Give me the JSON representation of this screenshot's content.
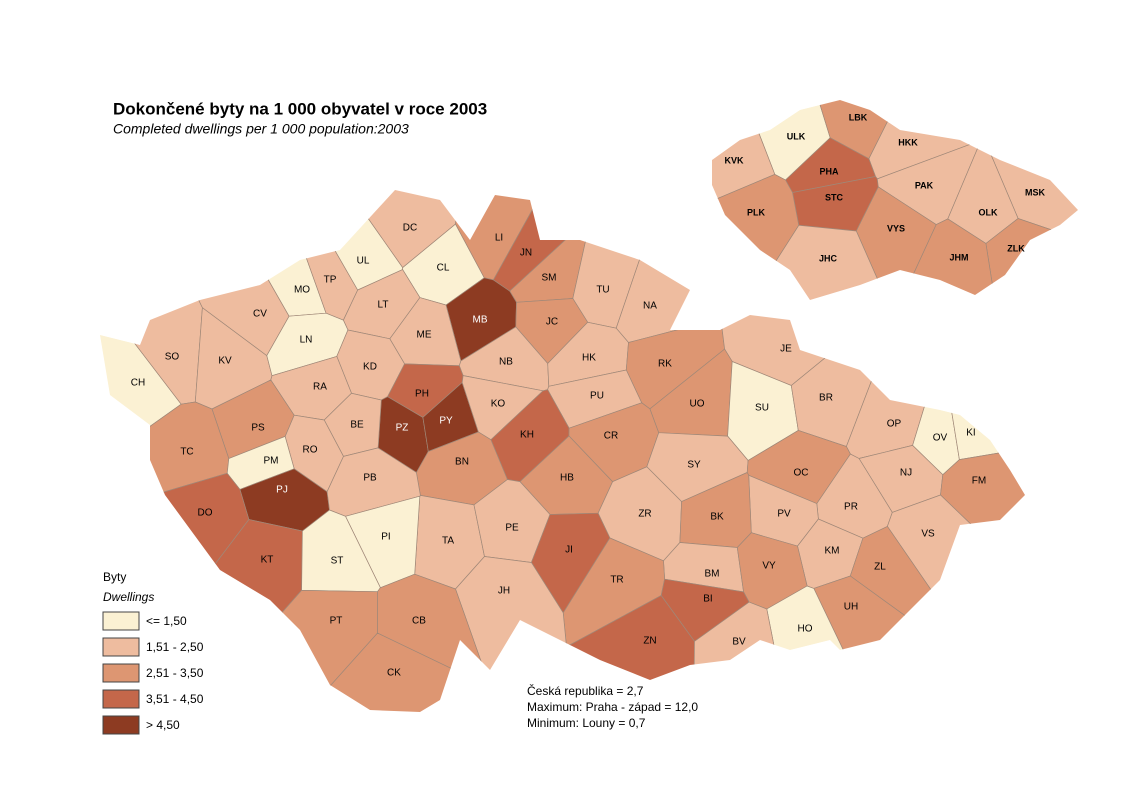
{
  "title": "Dokončené byty na 1 000 obyvatel v roce 2003",
  "subtitle": "Completed dwellings per 1 000 population:2003",
  "legend": {
    "title": "Byty",
    "subtitle": "Dwellings",
    "classes": [
      {
        "label": "<= 1,50",
        "color": "#fbf1d3"
      },
      {
        "label": "1,51 - 2,50",
        "color": "#eebc9f"
      },
      {
        "label": "2,51 - 3,50",
        "color": "#dd9672"
      },
      {
        "label": "3,51 - 4,50",
        "color": "#c4674a"
      },
      {
        "label": "> 4,50",
        "color": "#8d3b22"
      }
    ]
  },
  "districts": [
    {
      "label": "CH",
      "class": 0
    },
    {
      "label": "SO",
      "class": 1
    },
    {
      "label": "KV",
      "class": 1
    },
    {
      "label": "CV",
      "class": 1
    },
    {
      "label": "MO",
      "class": 0
    },
    {
      "label": "TP",
      "class": 1
    },
    {
      "label": "UL",
      "class": 0
    },
    {
      "label": "DC",
      "class": 1
    },
    {
      "label": "CL",
      "class": 0
    },
    {
      "label": "LI",
      "class": 2
    },
    {
      "label": "JN",
      "class": 3
    },
    {
      "label": "SM",
      "class": 2
    },
    {
      "label": "TU",
      "class": 1
    },
    {
      "label": "NA",
      "class": 1
    },
    {
      "label": "MB",
      "class": 4
    },
    {
      "label": "JC",
      "class": 2
    },
    {
      "label": "LT",
      "class": 1
    },
    {
      "label": "LN",
      "class": 0
    },
    {
      "label": "ME",
      "class": 1
    },
    {
      "label": "KD",
      "class": 1
    },
    {
      "label": "NB",
      "class": 1
    },
    {
      "label": "HK",
      "class": 1
    },
    {
      "label": "RK",
      "class": 2
    },
    {
      "label": "JE",
      "class": 1
    },
    {
      "label": "RA",
      "class": 1
    },
    {
      "label": "PH",
      "class": 3
    },
    {
      "label": "PZ",
      "class": 4
    },
    {
      "label": "PY",
      "class": 4
    },
    {
      "label": "KO",
      "class": 1
    },
    {
      "label": "PU",
      "class": 1
    },
    {
      "label": "UO",
      "class": 2
    },
    {
      "label": "SU",
      "class": 0
    },
    {
      "label": "BR",
      "class": 1
    },
    {
      "label": "OP",
      "class": 1
    },
    {
      "label": "OV",
      "class": 0
    },
    {
      "label": "KI",
      "class": 0
    },
    {
      "label": "BE",
      "class": 1
    },
    {
      "label": "RO",
      "class": 1
    },
    {
      "label": "PS",
      "class": 2
    },
    {
      "label": "TC",
      "class": 2
    },
    {
      "label": "PM",
      "class": 0
    },
    {
      "label": "PJ",
      "class": 4
    },
    {
      "label": "KH",
      "class": 3
    },
    {
      "label": "CR",
      "class": 2
    },
    {
      "label": "BN",
      "class": 2
    },
    {
      "label": "SY",
      "class": 1
    },
    {
      "label": "OC",
      "class": 2
    },
    {
      "label": "NJ",
      "class": 1
    },
    {
      "label": "FM",
      "class": 2
    },
    {
      "label": "PB",
      "class": 1
    },
    {
      "label": "HB",
      "class": 2
    },
    {
      "label": "DO",
      "class": 3
    },
    {
      "label": "PR",
      "class": 1
    },
    {
      "label": "PV",
      "class": 1
    },
    {
      "label": "ZR",
      "class": 1
    },
    {
      "label": "BK",
      "class": 2
    },
    {
      "label": "TA",
      "class": 1
    },
    {
      "label": "PE",
      "class": 1
    },
    {
      "label": "PI",
      "class": 0
    },
    {
      "label": "VS",
      "class": 1
    },
    {
      "label": "JI",
      "class": 3
    },
    {
      "label": "KM",
      "class": 1
    },
    {
      "label": "KT",
      "class": 3
    },
    {
      "label": "ST",
      "class": 0
    },
    {
      "label": "BM",
      "class": 1
    },
    {
      "label": "VY",
      "class": 2
    },
    {
      "label": "ZL",
      "class": 2
    },
    {
      "label": "TR",
      "class": 2
    },
    {
      "label": "JH",
      "class": 1
    },
    {
      "label": "BI",
      "class": 3
    },
    {
      "label": "UH",
      "class": 2
    },
    {
      "label": "PT",
      "class": 2
    },
    {
      "label": "CB",
      "class": 2
    },
    {
      "label": "HO",
      "class": 0
    },
    {
      "label": "ZN",
      "class": 3
    },
    {
      "label": "BV",
      "class": 1
    },
    {
      "label": "CK",
      "class": 2
    }
  ],
  "regions": [
    {
      "label": "ULK",
      "class": 0
    },
    {
      "label": "LBK",
      "class": 2
    },
    {
      "label": "HKK",
      "class": 1
    },
    {
      "label": "KVK",
      "class": 1
    },
    {
      "label": "PHA",
      "class": 3
    },
    {
      "label": "STC",
      "class": 3
    },
    {
      "label": "PAK",
      "class": 1
    },
    {
      "label": "MSK",
      "class": 1
    },
    {
      "label": "OLK",
      "class": 1
    },
    {
      "label": "PLK",
      "class": 2
    },
    {
      "label": "VYS",
      "class": 2
    },
    {
      "label": "ZLK",
      "class": 2
    },
    {
      "label": "JHC",
      "class": 1
    },
    {
      "label": "JHM",
      "class": 2
    }
  ],
  "stats": [
    "Česká republika =  2,7",
    "Maximum: Praha - západ =  12,0",
    "Minimum: Louny  = 0,7"
  ]
}
